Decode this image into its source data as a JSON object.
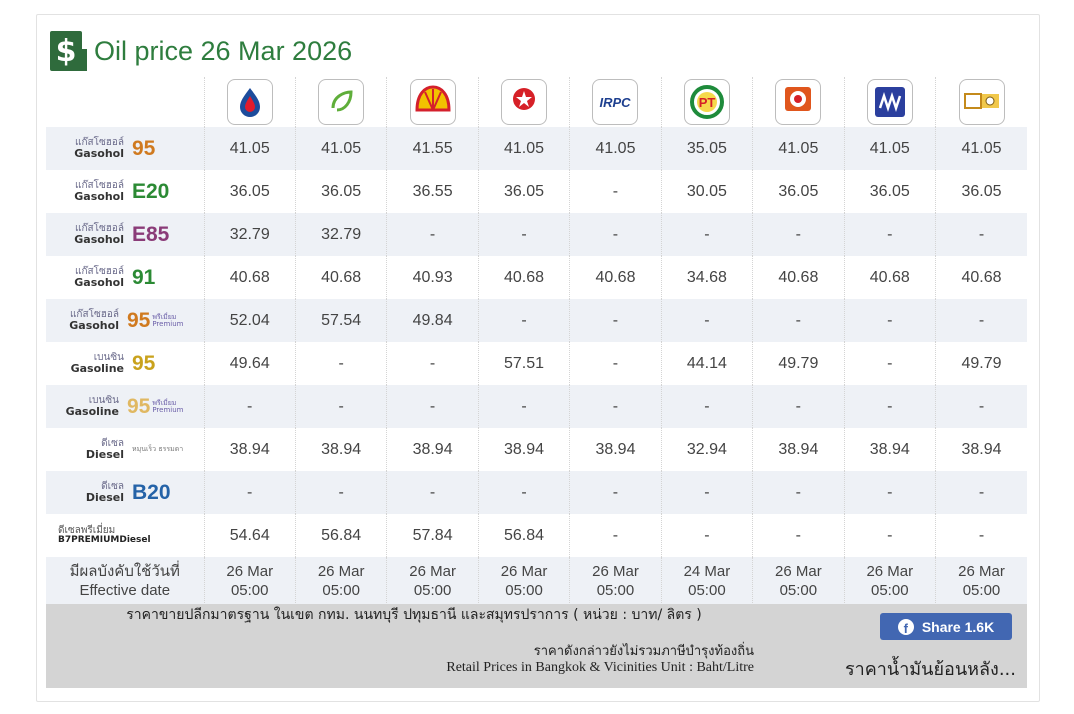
{
  "title": "Oil price 26 Mar 2026",
  "title_icon_glyph": "$",
  "brands": [
    {
      "name": "PTT",
      "icon": "ptt-logo-icon",
      "color": "#1d4c9c"
    },
    {
      "name": "Bangchak",
      "icon": "bangchak-logo-icon",
      "caption": "bangchak",
      "color": "#5fae3a"
    },
    {
      "name": "Shell",
      "icon": "shell-logo-icon",
      "color": "#f2c200"
    },
    {
      "name": "Caltex",
      "icon": "caltex-logo-icon",
      "caption": "CALTEX",
      "color": "#d62027"
    },
    {
      "name": "IRPC",
      "icon": "irpc-logo-icon",
      "caption": "IRPC",
      "color": "#1d3f8f"
    },
    {
      "name": "PT",
      "icon": "pt-logo-icon",
      "caption": "PT",
      "color": "#1e8b3b"
    },
    {
      "name": "Susco",
      "icon": "susco-logo-icon",
      "caption": "SUSCO",
      "color": "#e0561d"
    },
    {
      "name": "Pure",
      "icon": "pure-logo-icon",
      "caption": "PURE",
      "color": "#2b3f9e"
    },
    {
      "name": "Siam",
      "icon": "siam-logo-icon",
      "color": "#c48a1b"
    }
  ],
  "rows": [
    {
      "th": "แก๊สโซฮอล์",
      "en": "Gasohol",
      "grade": "95",
      "grade_class": "grade-orange",
      "tag": "",
      "shade": true,
      "values": [
        "41.05",
        "41.05",
        "41.55",
        "41.05",
        "41.05",
        "35.05",
        "41.05",
        "41.05",
        "41.05"
      ]
    },
    {
      "th": "แก๊สโซฮอล์",
      "en": "Gasohol",
      "grade": "E20",
      "grade_class": "grade-green",
      "tag": "",
      "shade": false,
      "values": [
        "36.05",
        "36.05",
        "36.55",
        "36.05",
        "-",
        "30.05",
        "36.05",
        "36.05",
        "36.05"
      ]
    },
    {
      "th": "แก๊สโซฮอล์",
      "en": "Gasohol",
      "grade": "E85",
      "grade_class": "grade-purple",
      "tag": "",
      "shade": true,
      "values": [
        "32.79",
        "32.79",
        "-",
        "-",
        "-",
        "-",
        "-",
        "-",
        "-"
      ]
    },
    {
      "th": "แก๊สโซฮอล์",
      "en": "Gasohol",
      "grade": "91",
      "grade_class": "grade-green",
      "tag": "",
      "shade": false,
      "values": [
        "40.68",
        "40.68",
        "40.93",
        "40.68",
        "40.68",
        "34.68",
        "40.68",
        "40.68",
        "40.68"
      ]
    },
    {
      "th": "แก๊สโซฮอล์",
      "en": "Gasohol",
      "grade": "95",
      "grade_class": "grade-orange",
      "tag": "พรีเมี่ยม Premium",
      "shade": true,
      "values": [
        "52.04",
        "57.54",
        "49.84",
        "-",
        "-",
        "-",
        "-",
        "-",
        "-"
      ]
    },
    {
      "th": "เบนซิน",
      "en": "Gasoline",
      "grade": "95",
      "grade_class": "grade-olive",
      "tag": "",
      "shade": false,
      "values": [
        "49.64",
        "-",
        "-",
        "57.51",
        "-",
        "44.14",
        "49.79",
        "-",
        "49.79"
      ]
    },
    {
      "th": "เบนซิน",
      "en": "Gasoline",
      "grade": "95",
      "grade_class": "grade-faded",
      "tag": "พรีเมี่ยม Premium",
      "shade": true,
      "values": [
        "-",
        "-",
        "-",
        "-",
        "-",
        "-",
        "-",
        "-",
        "-"
      ]
    },
    {
      "th": "ดีเซล",
      "en": "Diesel",
      "grade": "",
      "grade_class": "",
      "tag": "หมุนเร็ว ธรรมดา",
      "shade": false,
      "values": [
        "38.94",
        "38.94",
        "38.94",
        "38.94",
        "38.94",
        "32.94",
        "38.94",
        "38.94",
        "38.94"
      ]
    },
    {
      "th": "ดีเซล",
      "en": "Diesel",
      "grade": "B20",
      "grade_class": "grade-blue",
      "tag": "",
      "shade": true,
      "values": [
        "-",
        "-",
        "-",
        "-",
        "-",
        "-",
        "-",
        "-",
        "-"
      ]
    }
  ],
  "premium_diesel": {
    "th": "ดีเซลพรีเมี่ยม",
    "en": "B7PREMIUMDiesel",
    "values": [
      "54.64",
      "56.84",
      "57.84",
      "56.84",
      "-",
      "-",
      "-",
      "-",
      "-"
    ]
  },
  "effective": {
    "label_th": "มีผลบังคับใช้วันที่",
    "label_en": "Effective date",
    "dates": [
      "26 Mar",
      "26 Mar",
      "26 Mar",
      "26 Mar",
      "26 Mar",
      "24 Mar",
      "26 Mar",
      "26 Mar",
      "26 Mar"
    ],
    "times": [
      "05:00",
      "05:00",
      "05:00",
      "05:00",
      "05:00",
      "05:00",
      "05:00",
      "05:00",
      "05:00"
    ]
  },
  "footer": {
    "line1": "ราคาขายปลีกมาตรฐาน ในเขต กทม. นนทบุรี ปทุมธานี และสมุทรปราการ ( หน่วย : บาท/ ลิตร )",
    "line2": "ราคาดังกล่าวยังไม่รวมภาษีบำรุงท้องถิ่น",
    "line3": "Retail Prices in Bangkok & Vicinities Unit : Baht/Litre",
    "share_label": "Share 1.6K",
    "history_link": "ราคาน้ำมันย้อนหลัง..."
  }
}
